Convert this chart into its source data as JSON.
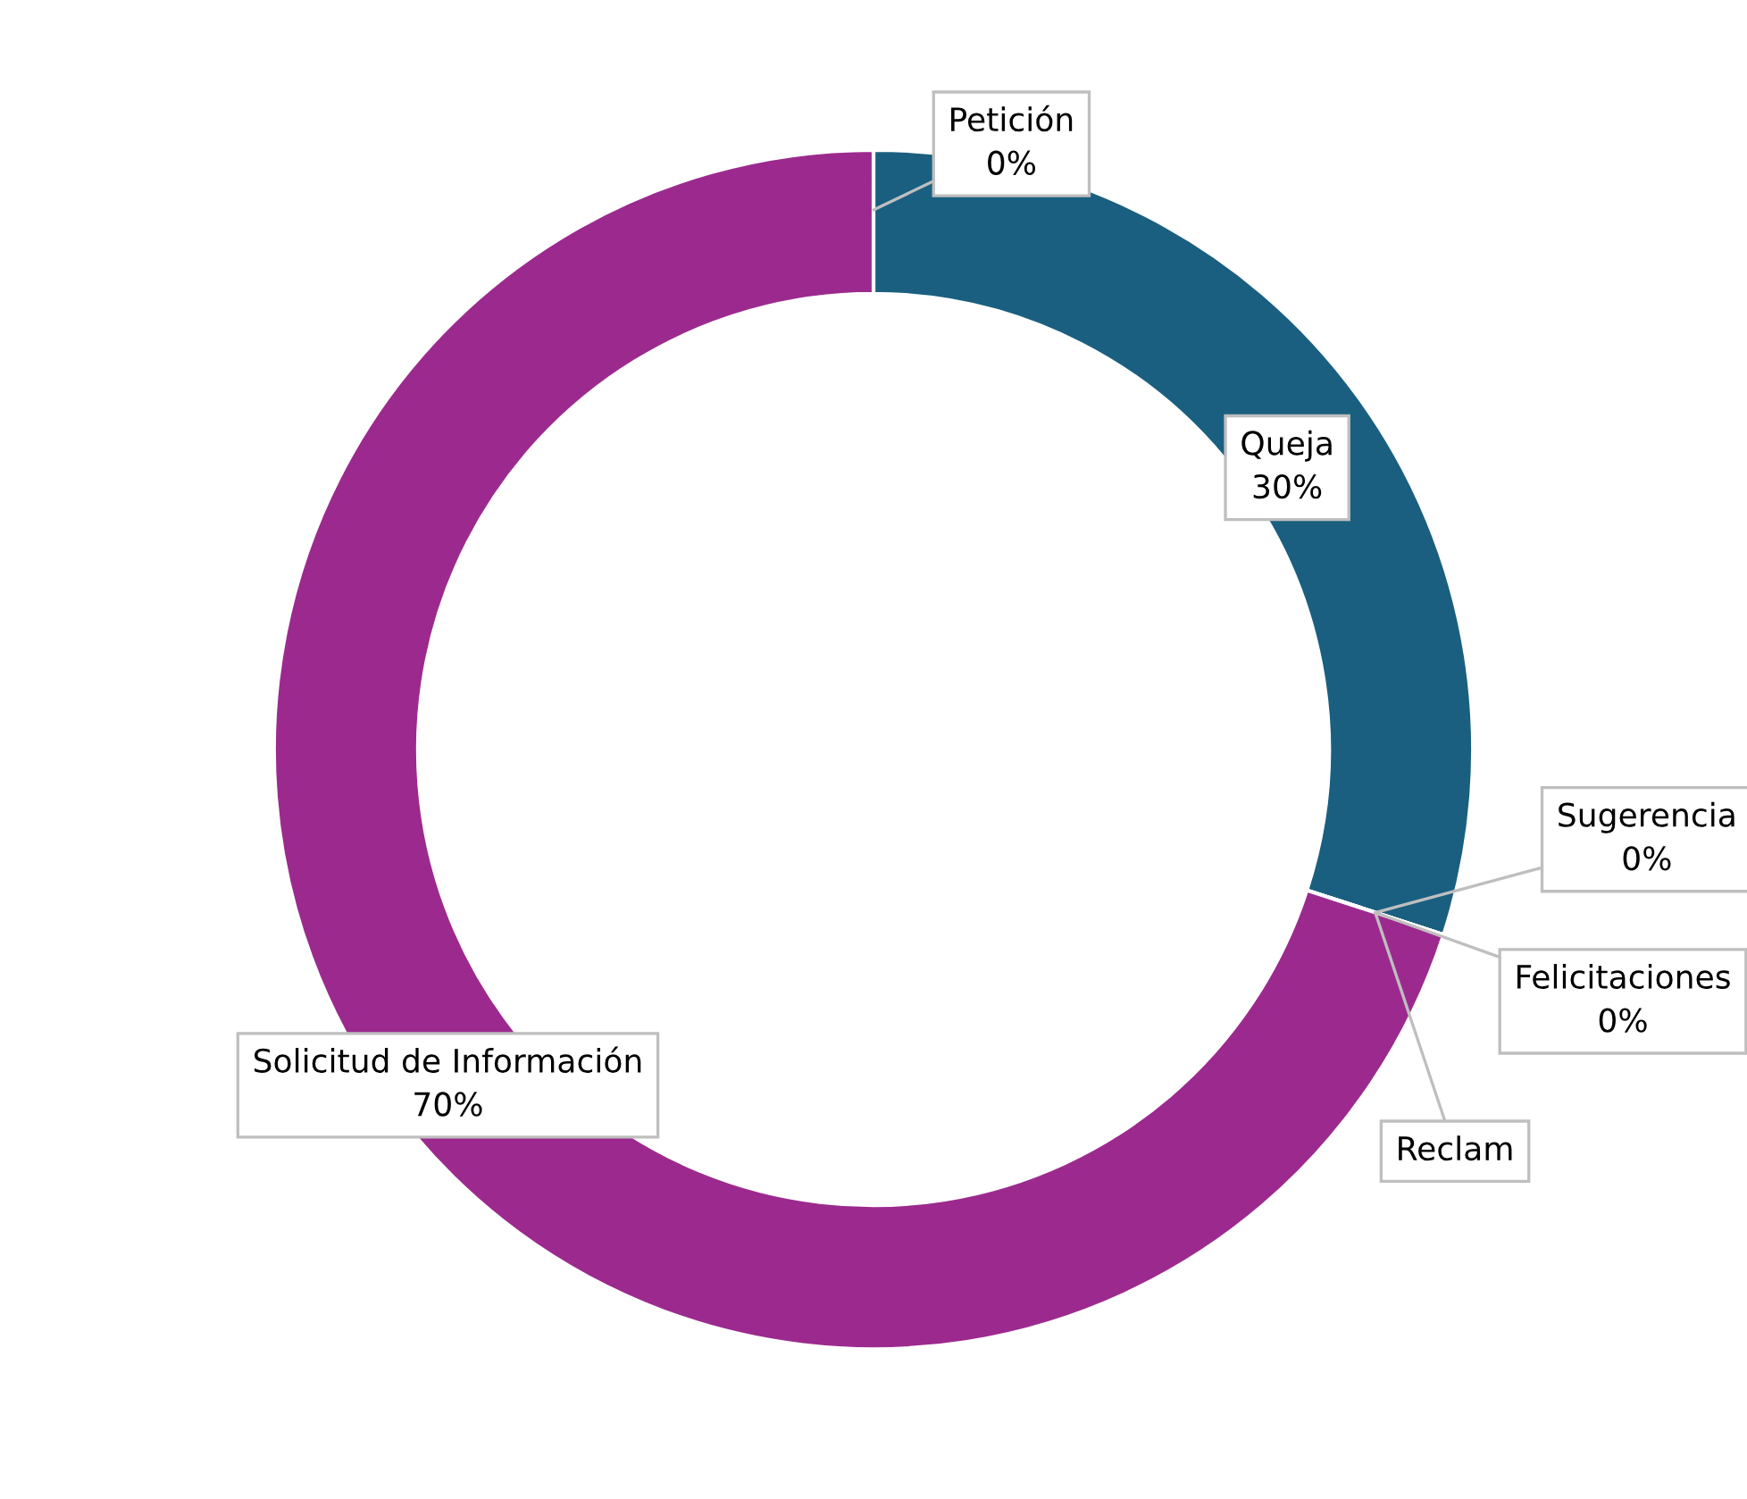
{
  "chart_data": {
    "type": "donut",
    "categories": [
      "Petición",
      "Queja",
      "Sugerencia",
      "Felicitaciones",
      "Reclam",
      "Solicitud de Información"
    ],
    "values": [
      0,
      30,
      0,
      0,
      0,
      70
    ],
    "value_labels": [
      "0%",
      "30%",
      "0%",
      "0%",
      null,
      "70%"
    ],
    "colors": [
      "#4472c4",
      "#1a5f80",
      "#ed7d31",
      "#a5a5a5",
      "#ffc000",
      "#9c2a8e"
    ],
    "legend": false
  }
}
